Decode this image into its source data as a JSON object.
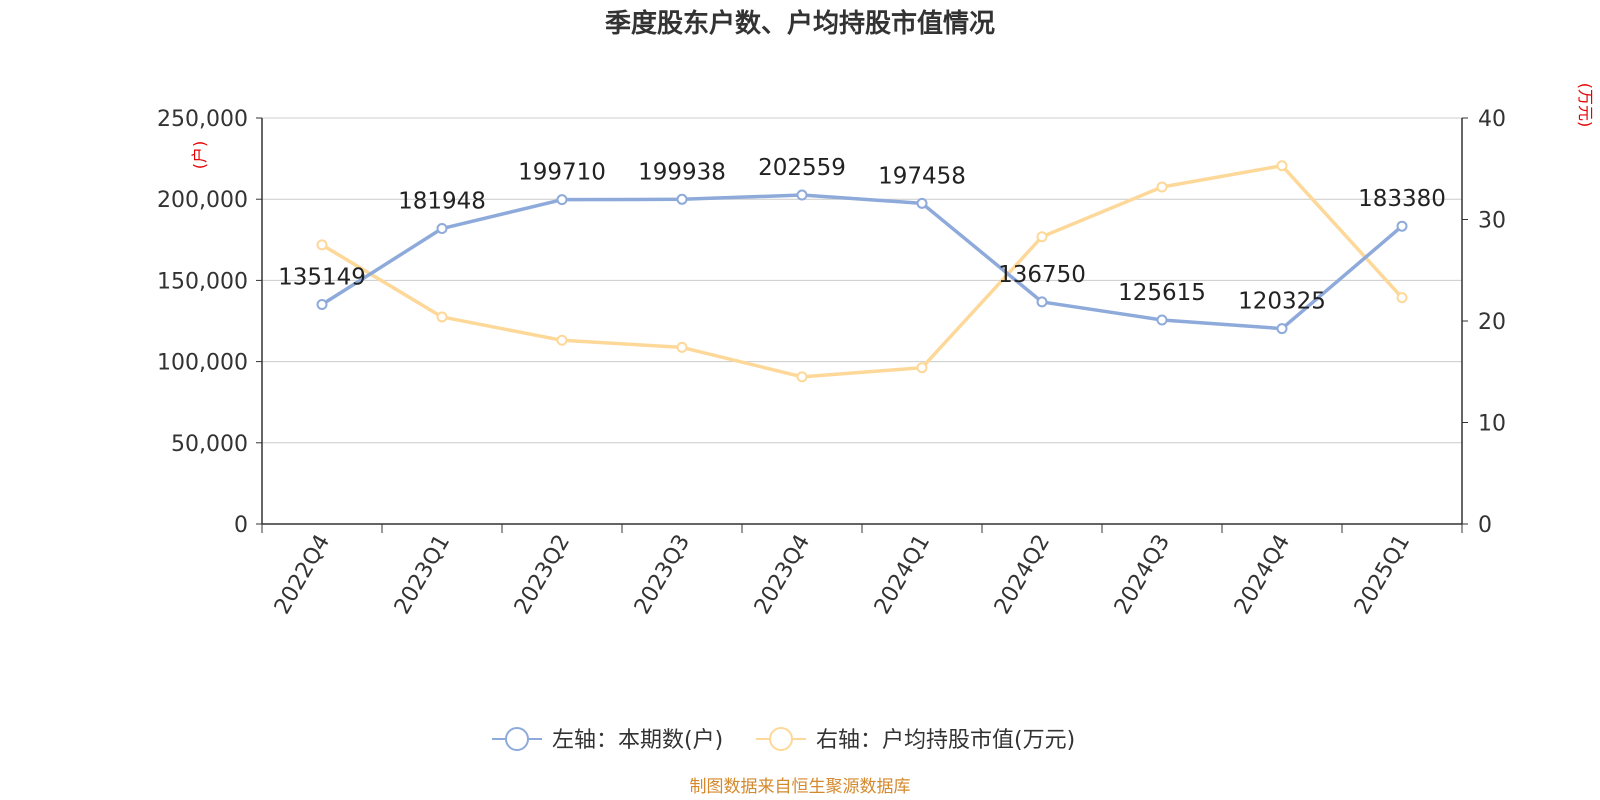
{
  "chart_data": {
    "type": "line",
    "title": "季度股东户数、户均持股市值情况",
    "categories": [
      "2022Q4",
      "2023Q1",
      "2023Q2",
      "2023Q3",
      "2023Q4",
      "2024Q1",
      "2024Q2",
      "2024Q3",
      "2024Q4",
      "2025Q1"
    ],
    "left_axis": {
      "unit": "(户)",
      "ylim": [
        0,
        250000
      ],
      "ticks": [
        "0",
        "50,000",
        "100,000",
        "150,000",
        "200,000",
        "250,000"
      ],
      "tick_values": [
        0,
        50000,
        100000,
        150000,
        200000,
        250000
      ]
    },
    "right_axis": {
      "unit": "(万元)",
      "ylim": [
        0,
        40
      ],
      "ticks": [
        "0",
        "10",
        "20",
        "30",
        "40"
      ],
      "tick_values": [
        0,
        10,
        20,
        30,
        40
      ]
    },
    "series": [
      {
        "name": "左轴：本期数(户)",
        "axis": "left",
        "color": "#8eaadb",
        "values": [
          135149,
          181948,
          199710,
          199938,
          202559,
          197458,
          136750,
          125615,
          120325,
          183380
        ],
        "labels": [
          "135149",
          "181948",
          "199710",
          "199938",
          "202559",
          "197458",
          "136750",
          "125615",
          "120325",
          "183380"
        ]
      },
      {
        "name": "右轴：户均持股市值(万元)",
        "axis": "right",
        "color": "#fdd899",
        "values": [
          27.5,
          20.4,
          18.1,
          17.4,
          14.5,
          15.4,
          28.3,
          33.2,
          35.3,
          22.3
        ]
      }
    ],
    "grid": true,
    "legend_position": "bottom-center",
    "unit_color": "#e60000"
  },
  "source_text": "制图数据来自恒生聚源数据库",
  "source_color": "#d4892d"
}
